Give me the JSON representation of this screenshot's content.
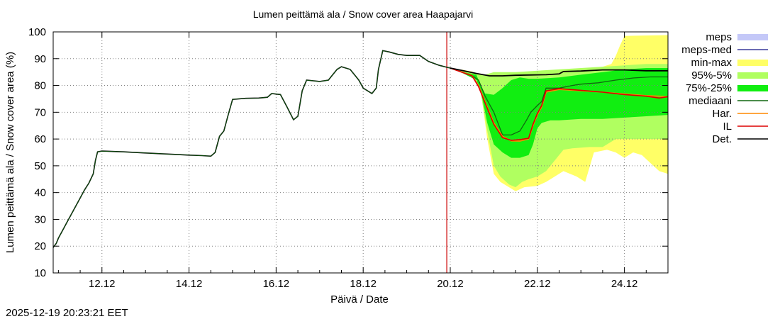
{
  "chart_data": {
    "type": "area",
    "title": "Lumen peittämä ala / Snow cover area Haapajarvi",
    "xlabel": "Päivä / Date",
    "ylabel": "Lumen peittämä ala / Snow cover area (%)",
    "xlim": [
      10.88,
      25.0
    ],
    "ylim": [
      10,
      100
    ],
    "yticks": [
      10,
      20,
      30,
      40,
      50,
      60,
      70,
      80,
      90,
      100
    ],
    "xticks": [
      {
        "label": "12.12",
        "value": 12
      },
      {
        "label": "14.12",
        "value": 14
      },
      {
        "label": "16.12",
        "value": 16
      },
      {
        "label": "18.12",
        "value": 18
      },
      {
        "label": "20.12",
        "value": 20
      },
      {
        "label": "22.12",
        "value": 22
      },
      {
        "label": "24.12",
        "value": 24
      }
    ],
    "grid": true,
    "forecast_start": 19.92,
    "legend_position": "right",
    "legend": [
      {
        "label": "meps",
        "kind": "box",
        "color": "#c4c8f8"
      },
      {
        "label": "meps-med",
        "kind": "line",
        "color": "#3a3a9a"
      },
      {
        "label": "min-max",
        "kind": "box",
        "color": "#ffff66"
      },
      {
        "label": "95%-5%",
        "kind": "box",
        "color": "#b0ff60"
      },
      {
        "label": "75%-25%",
        "kind": "box",
        "color": "#11ee11"
      },
      {
        "label": "mediaani",
        "kind": "line",
        "color": "#116611"
      },
      {
        "label": "Har.",
        "kind": "line",
        "color": "#ff8800"
      },
      {
        "label": "IL",
        "kind": "line",
        "color": "#dd0000"
      },
      {
        "label": "Det.",
        "kind": "line",
        "color": "#000000"
      }
    ],
    "colors": {
      "minmax": "#ffff66",
      "p95_5": "#b0ff60",
      "p75_25": "#11ee11",
      "median": "#116611",
      "har": "#ff8800",
      "il": "#dd0000",
      "det": "#000000",
      "forecast_line": "#cc0000"
    },
    "history": [
      [
        10.88,
        19.5
      ],
      [
        10.95,
        21
      ],
      [
        11.0,
        23
      ],
      [
        11.1,
        26
      ],
      [
        11.2,
        29
      ],
      [
        11.3,
        32
      ],
      [
        11.4,
        35
      ],
      [
        11.5,
        38
      ],
      [
        11.6,
        41
      ],
      [
        11.7,
        43.5
      ],
      [
        11.8,
        47
      ],
      [
        11.85,
        52
      ],
      [
        11.9,
        55.2
      ],
      [
        12.0,
        55.5
      ],
      [
        12.5,
        55.2
      ],
      [
        13.0,
        54.8
      ],
      [
        13.5,
        54.4
      ],
      [
        14.0,
        54.0
      ],
      [
        14.3,
        53.8
      ],
      [
        14.5,
        53.6
      ],
      [
        14.6,
        55
      ],
      [
        14.7,
        61
      ],
      [
        14.8,
        63
      ],
      [
        14.9,
        69
      ],
      [
        15.0,
        74.8
      ],
      [
        15.3,
        75.2
      ],
      [
        15.6,
        75.3
      ],
      [
        15.8,
        75.6
      ],
      [
        15.9,
        77
      ],
      [
        16.1,
        76.6
      ],
      [
        16.25,
        72
      ],
      [
        16.4,
        67.2
      ],
      [
        16.5,
        68.5
      ],
      [
        16.6,
        78
      ],
      [
        16.7,
        82
      ],
      [
        17.0,
        81.5
      ],
      [
        17.2,
        82
      ],
      [
        17.4,
        86
      ],
      [
        17.5,
        87
      ],
      [
        17.7,
        86
      ],
      [
        17.9,
        82
      ],
      [
        18.0,
        79
      ],
      [
        18.2,
        77
      ],
      [
        18.3,
        79
      ],
      [
        18.35,
        86
      ],
      [
        18.45,
        93
      ],
      [
        18.6,
        92.5
      ],
      [
        18.8,
        91.6
      ],
      [
        19.0,
        91.2
      ],
      [
        19.3,
        91.2
      ],
      [
        19.5,
        89
      ],
      [
        19.75,
        87.5
      ],
      [
        19.92,
        86.8
      ],
      [
        20.0,
        86.5
      ]
    ],
    "det": [
      [
        20.0,
        86.5
      ],
      [
        20.3,
        85.5
      ],
      [
        20.6,
        84.5
      ],
      [
        20.9,
        83.6
      ],
      [
        21.2,
        83.6
      ],
      [
        21.5,
        83.8
      ],
      [
        21.8,
        83.9
      ],
      [
        22.2,
        84.0
      ],
      [
        22.5,
        84.3
      ],
      [
        22.6,
        85.2
      ],
      [
        23.0,
        85.4
      ],
      [
        23.5,
        85.8
      ],
      [
        24.0,
        85.8
      ],
      [
        24.5,
        85.5
      ],
      [
        25.0,
        85.5
      ]
    ],
    "har": [
      [
        20.0,
        86.5
      ],
      [
        20.5,
        83.7
      ],
      [
        20.65,
        80
      ],
      [
        20.8,
        74
      ],
      [
        21.0,
        66
      ],
      [
        21.2,
        61
      ],
      [
        21.4,
        59.3
      ],
      [
        21.6,
        59.2
      ],
      [
        21.8,
        60
      ],
      [
        21.9,
        65
      ],
      [
        22.0,
        69
      ],
      [
        22.1,
        72
      ],
      [
        22.2,
        77.5
      ],
      [
        22.5,
        78.5
      ],
      [
        23.0,
        78
      ],
      [
        23.5,
        77.5
      ],
      [
        24.0,
        76.8
      ],
      [
        24.5,
        76.2
      ],
      [
        24.8,
        76
      ],
      [
        25.0,
        75.8
      ]
    ],
    "il": [
      [
        20.0,
        86.5
      ],
      [
        20.5,
        83.6
      ],
      [
        20.65,
        79.5
      ],
      [
        20.8,
        73.5
      ],
      [
        21.0,
        65.5
      ],
      [
        21.2,
        60.5
      ],
      [
        21.4,
        59.5
      ],
      [
        21.6,
        59.8
      ],
      [
        21.8,
        60.3
      ],
      [
        21.9,
        65.5
      ],
      [
        22.0,
        69.5
      ],
      [
        22.1,
        72.5
      ],
      [
        22.2,
        78
      ],
      [
        22.5,
        78.8
      ],
      [
        23.0,
        78.2
      ],
      [
        23.5,
        77.5
      ],
      [
        24.0,
        76.6
      ],
      [
        24.5,
        76.0
      ],
      [
        24.8,
        75.3
      ],
      [
        25.0,
        75.8
      ]
    ],
    "median": [
      [
        20.0,
        86.5
      ],
      [
        20.5,
        83.7
      ],
      [
        20.65,
        82
      ],
      [
        20.8,
        76
      ],
      [
        21.0,
        70
      ],
      [
        21.2,
        61.5
      ],
      [
        21.4,
        61.5
      ],
      [
        21.6,
        63
      ],
      [
        21.75,
        67
      ],
      [
        21.85,
        70
      ],
      [
        22.0,
        72.5
      ],
      [
        22.1,
        74
      ],
      [
        22.2,
        79
      ],
      [
        22.5,
        79
      ],
      [
        22.8,
        80
      ],
      [
        23.0,
        80.5
      ],
      [
        23.4,
        81
      ],
      [
        23.6,
        81.5
      ],
      [
        23.8,
        82
      ],
      [
        24.2,
        82.8
      ],
      [
        24.6,
        83.2
      ],
      [
        25.0,
        83.2
      ]
    ],
    "minmax_upper": [
      [
        20.0,
        86.5
      ],
      [
        20.3,
        85.8
      ],
      [
        20.5,
        85.2
      ],
      [
        20.65,
        84
      ],
      [
        20.8,
        82
      ],
      [
        20.9,
        81
      ],
      [
        21.0,
        84
      ],
      [
        21.5,
        84.5
      ],
      [
        22.0,
        84.2
      ],
      [
        22.5,
        85
      ],
      [
        23.0,
        86
      ],
      [
        23.5,
        87
      ],
      [
        23.7,
        88
      ],
      [
        23.8,
        91
      ],
      [
        23.9,
        95
      ],
      [
        24.0,
        98.5
      ],
      [
        25.0,
        98.8
      ]
    ],
    "minmax_lower": [
      [
        20.0,
        86.5
      ],
      [
        20.3,
        85.5
      ],
      [
        20.6,
        83
      ],
      [
        20.7,
        78
      ],
      [
        20.85,
        60
      ],
      [
        21.0,
        47
      ],
      [
        21.15,
        44
      ],
      [
        21.35,
        42
      ],
      [
        21.5,
        40.5
      ],
      [
        21.7,
        42
      ],
      [
        22.0,
        42.5
      ],
      [
        22.2,
        44
      ],
      [
        22.4,
        46
      ],
      [
        22.6,
        48
      ],
      [
        22.9,
        46
      ],
      [
        23.1,
        44
      ],
      [
        23.3,
        55
      ],
      [
        23.6,
        56
      ],
      [
        23.8,
        55
      ],
      [
        24.0,
        53
      ],
      [
        24.2,
        55
      ],
      [
        24.4,
        54
      ],
      [
        24.6,
        51
      ],
      [
        24.8,
        48
      ],
      [
        25.0,
        47
      ]
    ],
    "p95_upper": [
      [
        20.0,
        86.5
      ],
      [
        20.3,
        85.5
      ],
      [
        20.6,
        84.5
      ],
      [
        20.8,
        84
      ],
      [
        21.0,
        85
      ],
      [
        21.5,
        85
      ],
      [
        22.0,
        85.5
      ],
      [
        22.5,
        86
      ],
      [
        23.0,
        86.5
      ],
      [
        23.5,
        87
      ],
      [
        24.0,
        87.5
      ],
      [
        24.5,
        88
      ],
      [
        25.0,
        88
      ]
    ],
    "p95_lower": [
      [
        20.0,
        86.5
      ],
      [
        20.3,
        85
      ],
      [
        20.6,
        82
      ],
      [
        20.7,
        77
      ],
      [
        20.85,
        63
      ],
      [
        21.0,
        50
      ],
      [
        21.15,
        46
      ],
      [
        21.35,
        43
      ],
      [
        21.5,
        42
      ],
      [
        21.65,
        44
      ],
      [
        21.8,
        45
      ],
      [
        22.0,
        46
      ],
      [
        22.2,
        48
      ],
      [
        22.4,
        52
      ],
      [
        22.6,
        56
      ],
      [
        22.8,
        56.5
      ],
      [
        23.2,
        57
      ],
      [
        23.5,
        57
      ],
      [
        23.8,
        60
      ],
      [
        24.0,
        60
      ],
      [
        24.5,
        60
      ],
      [
        25.0,
        60
      ]
    ],
    "p75_upper": [
      [
        20.0,
        86.5
      ],
      [
        20.3,
        85
      ],
      [
        20.6,
        84
      ],
      [
        20.7,
        80
      ],
      [
        20.8,
        77
      ],
      [
        21.0,
        76.5
      ],
      [
        21.2,
        79
      ],
      [
        21.4,
        82
      ],
      [
        21.6,
        83
      ],
      [
        21.8,
        82.5
      ],
      [
        22.0,
        82.5
      ],
      [
        22.5,
        83
      ],
      [
        23.0,
        84
      ],
      [
        23.5,
        85
      ],
      [
        24.0,
        86
      ],
      [
        24.5,
        86.5
      ],
      [
        25.0,
        86.5
      ]
    ],
    "p75_lower": [
      [
        20.0,
        86.5
      ],
      [
        20.3,
        84.5
      ],
      [
        20.6,
        82
      ],
      [
        20.7,
        78
      ],
      [
        20.85,
        66
      ],
      [
        21.0,
        58
      ],
      [
        21.2,
        55
      ],
      [
        21.4,
        53
      ],
      [
        21.6,
        53
      ],
      [
        21.8,
        54
      ],
      [
        21.9,
        58
      ],
      [
        22.0,
        64
      ],
      [
        22.1,
        66
      ],
      [
        22.3,
        67
      ],
      [
        22.5,
        67
      ],
      [
        23.0,
        67.5
      ],
      [
        23.5,
        67.5
      ],
      [
        24.0,
        68
      ],
      [
        24.5,
        68.5
      ],
      [
        25.0,
        69
      ]
    ]
  },
  "footer": {
    "timestamp": "2025-12-19 20:23:21 EET"
  }
}
